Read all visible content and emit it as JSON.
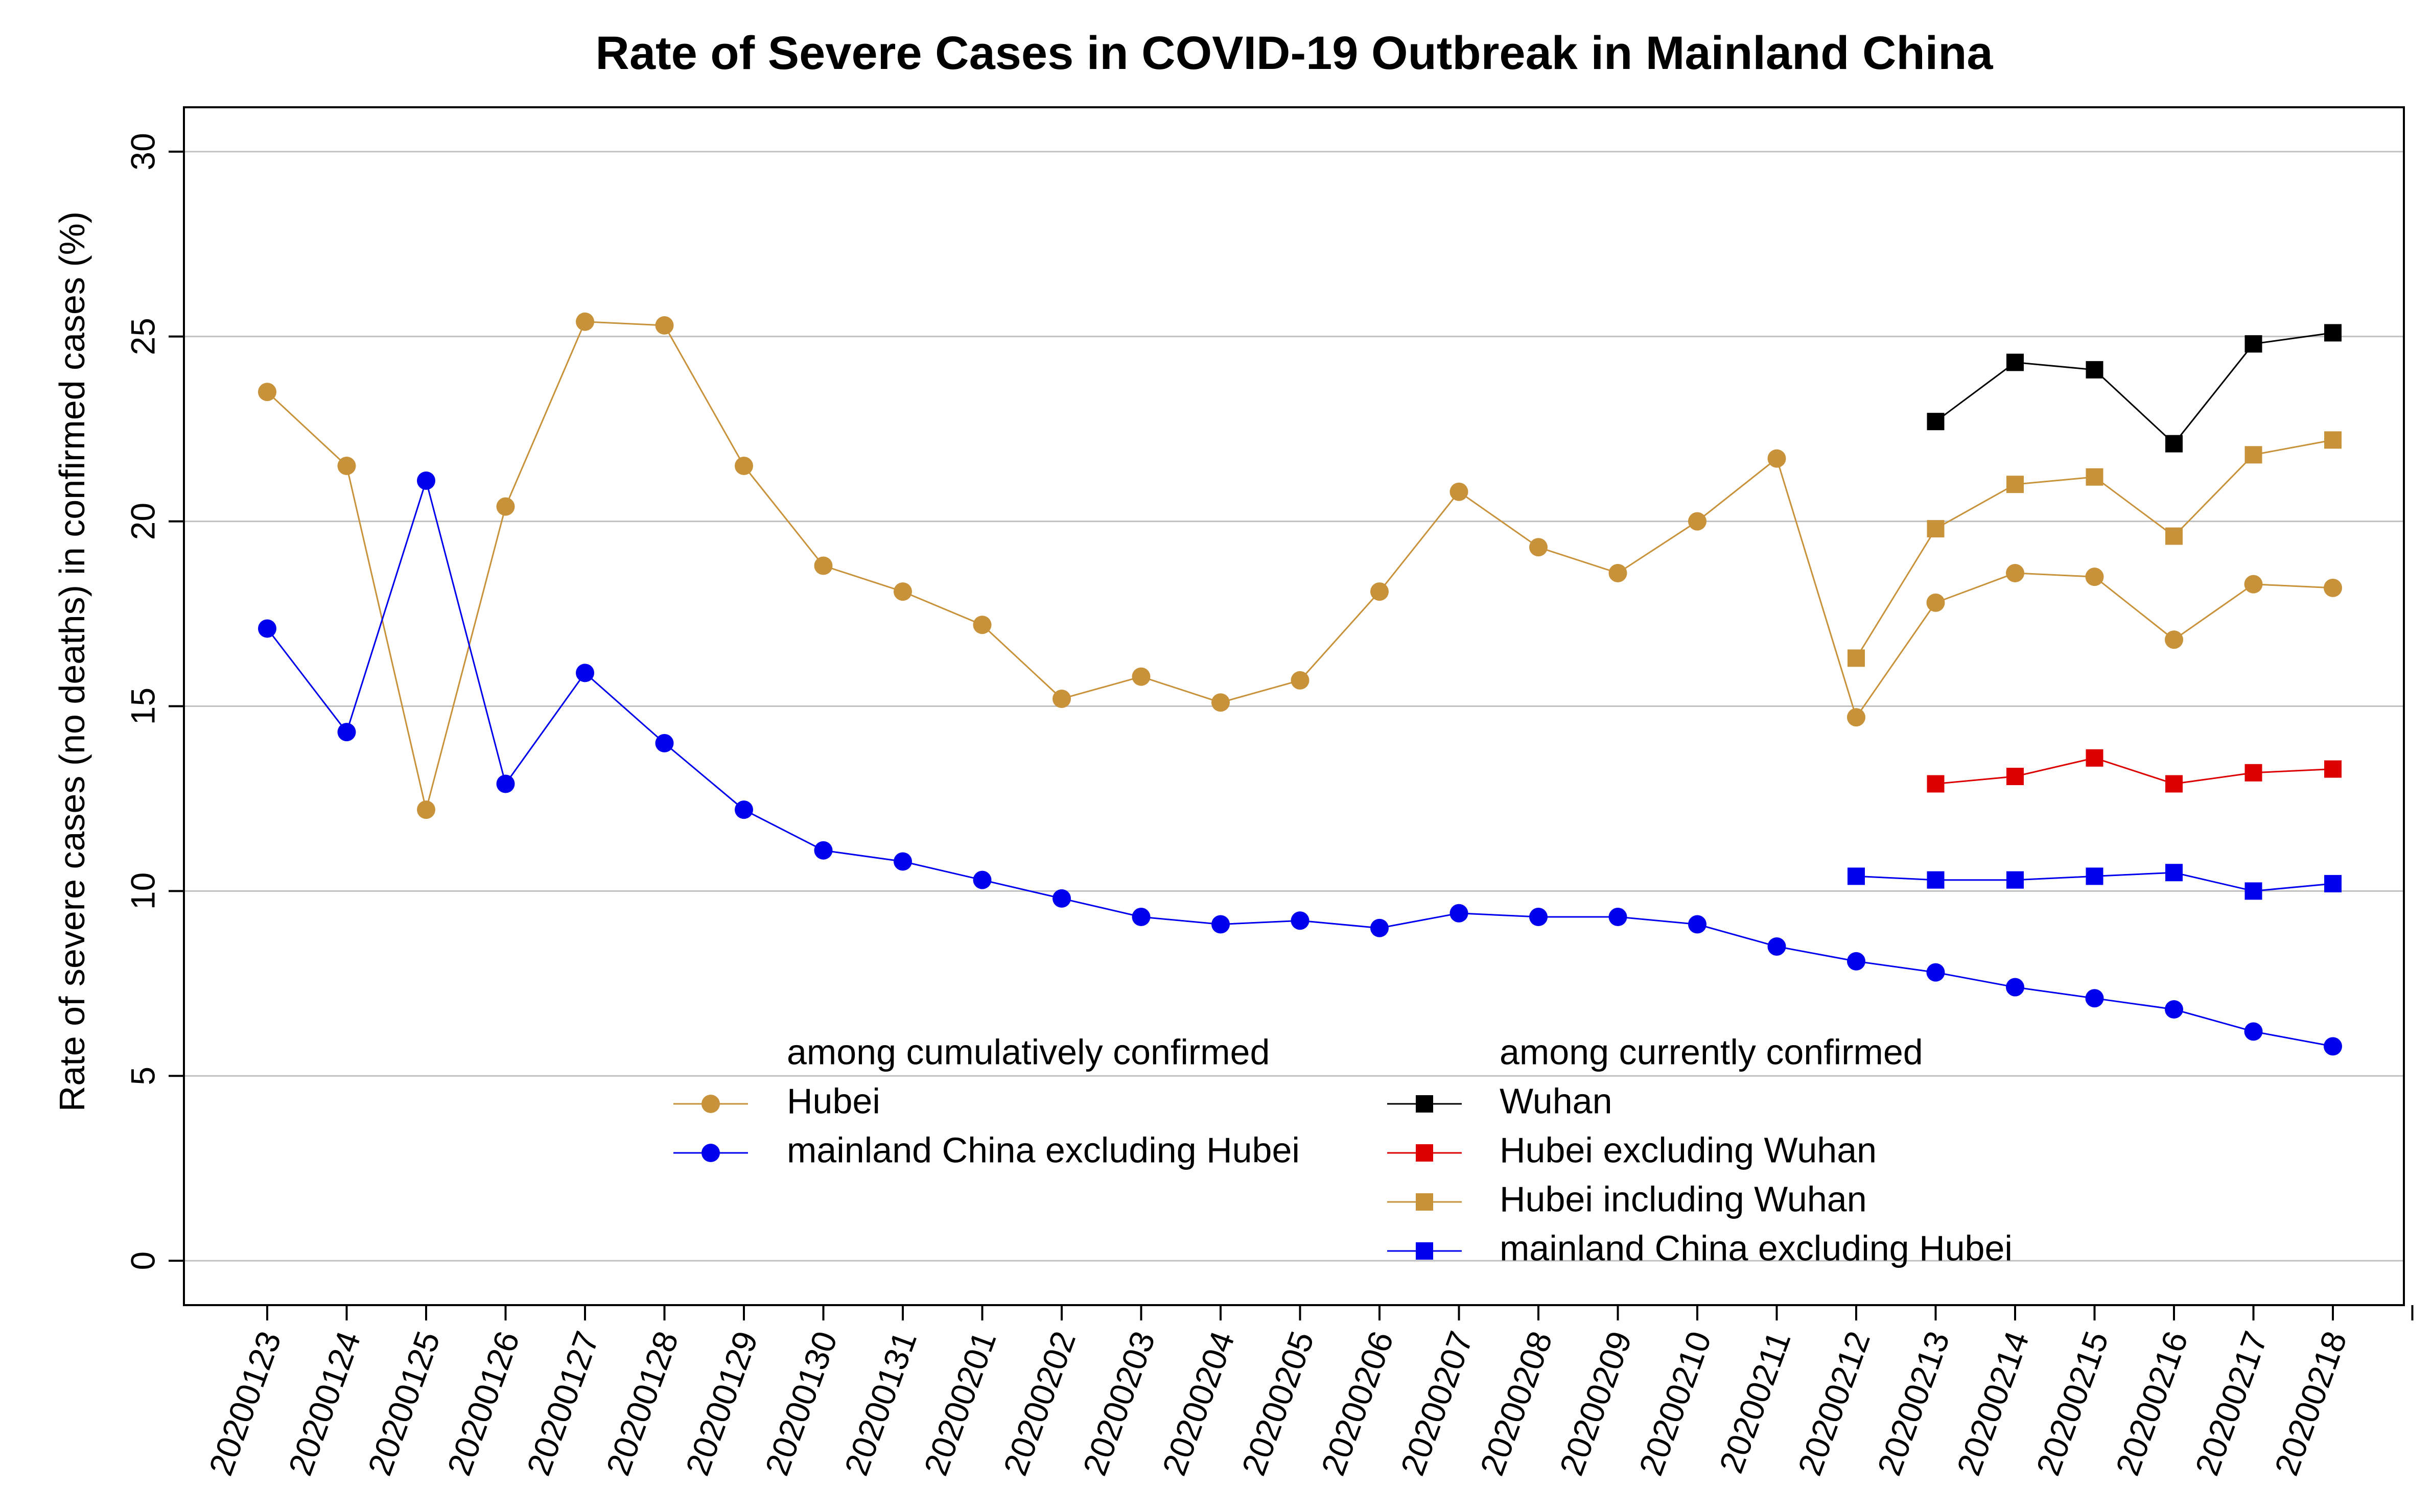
{
  "chart_data": {
    "type": "line",
    "title": "Rate of Severe Cases in COVID-19 Outbreak in Mainland China",
    "xlabel": "",
    "ylabel": "Rate of severe cases (no deaths) in confirmed cases (%)",
    "ylim": [
      -1.2,
      31.2
    ],
    "y_ticks": [
      0,
      5,
      10,
      15,
      20,
      25,
      30
    ],
    "grid": true,
    "categories": [
      "20200123",
      "20200124",
      "20200125",
      "20200126",
      "20200127",
      "20200128",
      "20200129",
      "20200130",
      "20200131",
      "20200201",
      "20200202",
      "20200203",
      "20200204",
      "20200205",
      "20200206",
      "20200207",
      "20200208",
      "20200209",
      "20200210",
      "20200211",
      "20200212",
      "20200213",
      "20200214",
      "20200215",
      "20200216",
      "20200217",
      "20200218"
    ],
    "legend_groups": [
      {
        "title": "among cumulatively confirmed",
        "entries": [
          "Hubei",
          "mainland China excluding Hubei"
        ]
      },
      {
        "title": "among currently confirmed",
        "entries": [
          "Wuhan",
          "Hubei excluding Wuhan",
          "Hubei including Wuhan",
          "mainland China excluding Hubei"
        ]
      }
    ],
    "series": [
      {
        "name": "Hubei",
        "group": "cumulative",
        "marker": "circle",
        "color": "#C8923A",
        "values": [
          23.5,
          21.5,
          12.2,
          20.4,
          25.4,
          25.3,
          21.5,
          18.8,
          18.1,
          17.2,
          15.2,
          15.8,
          15.1,
          15.7,
          18.1,
          20.8,
          19.3,
          18.6,
          20.0,
          21.7,
          14.7,
          17.8,
          18.6,
          18.5,
          16.8,
          18.3,
          18.2
        ]
      },
      {
        "name": "mainland China excluding Hubei",
        "group": "cumulative",
        "marker": "circle",
        "color": "#0000EE",
        "values": [
          17.1,
          14.3,
          21.1,
          12.9,
          15.9,
          14.0,
          12.2,
          11.1,
          10.8,
          10.3,
          9.8,
          9.3,
          9.1,
          9.2,
          9.0,
          9.4,
          9.3,
          9.3,
          9.1,
          8.5,
          8.1,
          7.8,
          7.4,
          7.1,
          6.8,
          6.2,
          5.8
        ]
      },
      {
        "name": "Wuhan",
        "group": "current",
        "marker": "square",
        "color": "#000000",
        "values": [
          null,
          null,
          null,
          null,
          null,
          null,
          null,
          null,
          null,
          null,
          null,
          null,
          null,
          null,
          null,
          null,
          null,
          null,
          null,
          null,
          null,
          22.7,
          24.3,
          24.1,
          22.1,
          24.8,
          25.1
        ]
      },
      {
        "name": "Hubei excluding Wuhan",
        "group": "current",
        "marker": "square",
        "color": "#DD0000",
        "values": [
          null,
          null,
          null,
          null,
          null,
          null,
          null,
          null,
          null,
          null,
          null,
          null,
          null,
          null,
          null,
          null,
          null,
          null,
          null,
          null,
          null,
          12.9,
          13.1,
          13.6,
          12.9,
          13.2,
          13.3
        ]
      },
      {
        "name": "Hubei including Wuhan",
        "group": "current",
        "marker": "square",
        "color": "#C8923A",
        "values": [
          null,
          null,
          null,
          null,
          null,
          null,
          null,
          null,
          null,
          null,
          null,
          null,
          null,
          null,
          null,
          null,
          null,
          null,
          null,
          null,
          16.3,
          19.8,
          21.0,
          21.2,
          19.6,
          21.8,
          22.2
        ]
      },
      {
        "name": "mainland China excluding Hubei",
        "group": "current",
        "marker": "square",
        "color": "#0000EE",
        "values": [
          null,
          null,
          null,
          null,
          null,
          null,
          null,
          null,
          null,
          null,
          null,
          null,
          null,
          null,
          null,
          null,
          null,
          null,
          null,
          null,
          10.4,
          10.3,
          10.3,
          10.4,
          10.5,
          10.0,
          10.2
        ]
      }
    ]
  }
}
